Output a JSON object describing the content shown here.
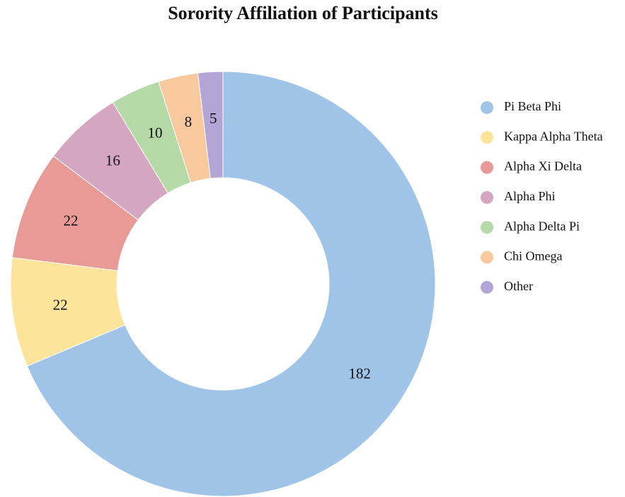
{
  "chart_data": {
    "type": "donut",
    "title": "Sorority Affiliation of Participants",
    "categories": [
      "Pi Beta Phi",
      "Kappa Alpha Theta",
      "Alpha Xi Delta",
      "Alpha Phi",
      "Alpha Delta Pi",
      "Chi Omega",
      "Other"
    ],
    "values": [
      182,
      22,
      22,
      16,
      10,
      8,
      5
    ],
    "colors": [
      "#a0c4e8",
      "#fde49b",
      "#ea9a96",
      "#d5a6c0",
      "#b6d9a8",
      "#f8c99d",
      "#b3a6d6"
    ],
    "legend": "right"
  }
}
